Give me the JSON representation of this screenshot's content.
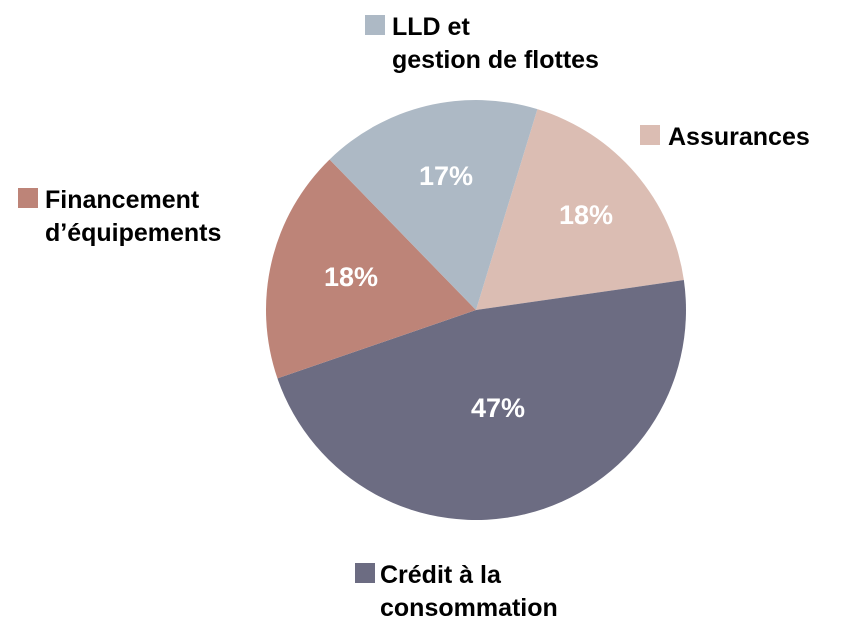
{
  "chart_data": {
    "type": "pie",
    "categories": [
      "Assurances",
      "Crédit à la\nconsommation",
      "Financement\nd’équipements",
      "LLD et\ngestion de flottes"
    ],
    "values": [
      18,
      47,
      18,
      17
    ],
    "value_labels": [
      "18%",
      "47%",
      "18%",
      "17%"
    ],
    "colors": [
      "#dbbdb3",
      "#6c6c82",
      "#bd8478",
      "#adb9c5"
    ]
  }
}
